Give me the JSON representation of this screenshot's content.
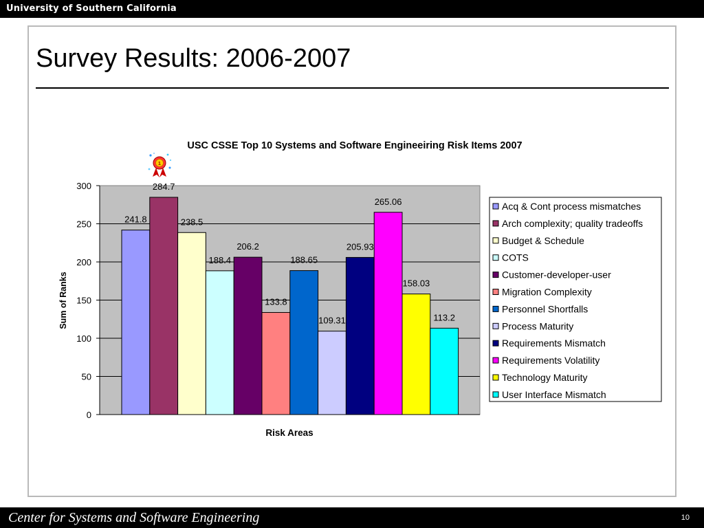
{
  "header": {
    "university": "University of Southern California"
  },
  "slide": {
    "title": "Survey Results: 2006-2007"
  },
  "footer": {
    "center_name": "Center for Systems and Software Engineering",
    "page_number": "10"
  },
  "colors": {
    "plot_background": "#c0c0c0",
    "frame_border": "#b9b9b9"
  },
  "decoration": {
    "icon": "award-ribbon-icon"
  },
  "chart_data": {
    "type": "bar",
    "title": "USC CSSE Top 10 Systems and Software Engineeiring Risk Items 2007",
    "xlabel": "Risk Areas",
    "ylabel": "Sum of Ranks",
    "ylim": [
      0,
      300
    ],
    "yticks": [
      0,
      50,
      100,
      150,
      200,
      250,
      300
    ],
    "grid": true,
    "legend_position": "right",
    "series": [
      {
        "name": "Acq & Cont process mismatches",
        "value": 241.8,
        "label": "241.8",
        "color": "#9999ff"
      },
      {
        "name": "Arch complexity; quality tradeoffs",
        "value": 284.7,
        "label": "284.7",
        "color": "#993366"
      },
      {
        "name": "Budget & Schedule",
        "value": 238.5,
        "label": "238.5",
        "color": "#ffffcc"
      },
      {
        "name": "COTS",
        "value": 188.4,
        "label": "188.4",
        "color": "#ccffff"
      },
      {
        "name": "Customer-developer-user",
        "value": 206.2,
        "label": "206.2",
        "color": "#660066"
      },
      {
        "name": "Migration Complexity",
        "value": 133.8,
        "label": "133.8",
        "color": "#ff8080"
      },
      {
        "name": "Personnel Shortfalls",
        "value": 188.65,
        "label": "188.65",
        "color": "#0066cc"
      },
      {
        "name": "Process Maturity",
        "value": 109.31,
        "label": "109.31",
        "color": "#ccccff"
      },
      {
        "name": "Requirements Mismatch",
        "value": 205.93,
        "label": "205.93",
        "color": "#000080"
      },
      {
        "name": "Requirements Volatility",
        "value": 265.06,
        "label": "265.06",
        "color": "#ff00ff"
      },
      {
        "name": "Technology Maturity",
        "value": 158.03,
        "label": "158.03",
        "color": "#ffff00"
      },
      {
        "name": "User Interface Mismatch",
        "value": 113.2,
        "label": "113.2",
        "color": "#00ffff"
      }
    ]
  }
}
